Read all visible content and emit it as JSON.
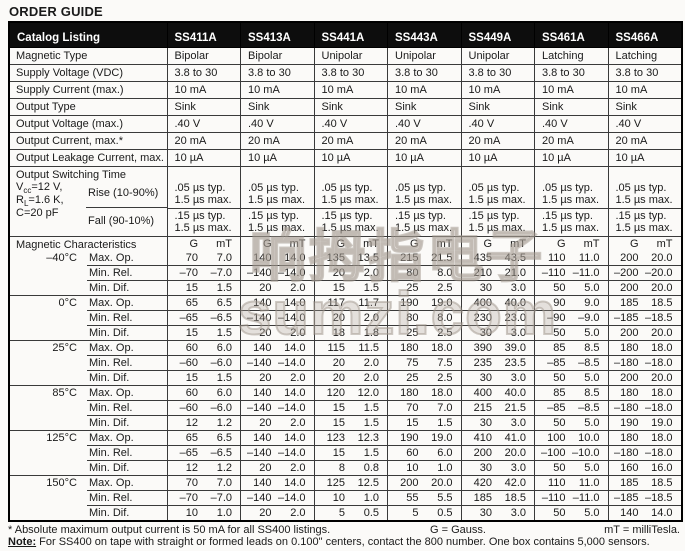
{
  "page": {
    "title": "ORDER GUIDE"
  },
  "colors": {
    "header_bg": "#0d0d0d",
    "border": "#3a3a3a",
    "text": "#1a1a1a",
    "watermark": "#b0a79e"
  },
  "table": {
    "header": {
      "label": "Catalog Listing",
      "columns": [
        "SS411A",
        "SS413A",
        "SS441A",
        "SS443A",
        "SS449A",
        "SS461A",
        "SS466A"
      ]
    },
    "simple_rows": [
      {
        "label": "Magnetic Type",
        "values": [
          "Bipolar",
          "Bipolar",
          "Unipolar",
          "Unipolar",
          "Unipolar",
          "Latching",
          "Latching"
        ]
      },
      {
        "label": "Supply Voltage (VDC)",
        "values": [
          "3.8 to 30",
          "3.8 to 30",
          "3.8 to 30",
          "3.8 to 30",
          "3.8 to 30",
          "3.8 to 30",
          "3.8 to 30"
        ]
      },
      {
        "label": "Supply Current (max.)",
        "values": [
          "10 mA",
          "10 mA",
          "10 mA",
          "10 mA",
          "10 mA",
          "10 mA",
          "10 mA"
        ]
      },
      {
        "label": "Output Type",
        "values": [
          "Sink",
          "Sink",
          "Sink",
          "Sink",
          "Sink",
          "Sink",
          "Sink"
        ]
      },
      {
        "label": "Output Voltage (max.)",
        "values": [
          ".40 V",
          ".40 V",
          ".40 V",
          ".40 V",
          ".40 V",
          ".40 V",
          ".40 V"
        ]
      },
      {
        "label": "Output Current, max.*",
        "values": [
          "20 mA",
          "20 mA",
          "20 mA",
          "20 mA",
          "20 mA",
          "20 mA",
          "20 mA"
        ]
      },
      {
        "label": "Output Leakage Current, max.",
        "values": [
          "10 µA",
          "10 µA",
          "10 µA",
          "10 µA",
          "10 µA",
          "10 µA",
          "10 µA"
        ]
      }
    ],
    "switching": {
      "title": "Output Switching Time",
      "conditions": [
        {
          "base": "V",
          "sub": "cc",
          "rest": "=12 V,"
        },
        {
          "base": "R",
          "sub": "L",
          "rest": "=1.6 K,"
        },
        {
          "base": "C",
          "sub": "",
          "rest": "=20 pF"
        }
      ],
      "rows": [
        {
          "label": "Rise (10-90%)",
          "line1": ".05 µs typ.",
          "line2": "1.5 µs max."
        },
        {
          "label": "Fall (90-10%)",
          "line1": ".15 µs typ.",
          "line2": "1.5 µs max."
        }
      ]
    },
    "magnetic": {
      "section_label": "Magnetic Characteristics",
      "unit_g": "G",
      "unit_mt": "mT",
      "blocks": [
        {
          "temp": "–40°C",
          "rows": [
            {
              "label": "Max. Op.",
              "values": [
                [
                  "70",
                  "7.0"
                ],
                [
                  "140",
                  "14.0"
                ],
                [
                  "135",
                  "13.5"
                ],
                [
                  "215",
                  "21.5"
                ],
                [
                  "435",
                  "43.5"
                ],
                [
                  "110",
                  "11.0"
                ],
                [
                  "200",
                  "20.0"
                ]
              ]
            },
            {
              "label": "Min. Rel.",
              "values": [
                [
                  "–70",
                  "–7.0"
                ],
                [
                  "–140",
                  "–14.0"
                ],
                [
                  "20",
                  "2.0"
                ],
                [
                  "80",
                  "8.0"
                ],
                [
                  "210",
                  "21.0"
                ],
                [
                  "–110",
                  "–11.0"
                ],
                [
                  "–200",
                  "–20.0"
                ]
              ]
            },
            {
              "label": "Min. Dif.",
              "values": [
                [
                  "15",
                  "1.5"
                ],
                [
                  "20",
                  "2.0"
                ],
                [
                  "15",
                  "1.5"
                ],
                [
                  "25",
                  "2.5"
                ],
                [
                  "30",
                  "3.0"
                ],
                [
                  "50",
                  "5.0"
                ],
                [
                  "200",
                  "20.0"
                ]
              ]
            }
          ]
        },
        {
          "temp": "0°C",
          "rows": [
            {
              "label": "Max. Op.",
              "values": [
                [
                  "65",
                  "6.5"
                ],
                [
                  "140",
                  "14.0"
                ],
                [
                  "117",
                  "11.7"
                ],
                [
                  "190",
                  "19.0"
                ],
                [
                  "400",
                  "40.0"
                ],
                [
                  "90",
                  "9.0"
                ],
                [
                  "185",
                  "18.5"
                ]
              ]
            },
            {
              "label": "Min. Rel.",
              "values": [
                [
                  "–65",
                  "–6.5"
                ],
                [
                  "–140",
                  "–14.0"
                ],
                [
                  "20",
                  "2.0"
                ],
                [
                  "80",
                  "8.0"
                ],
                [
                  "230",
                  "23.0"
                ],
                [
                  "–90",
                  "–9.0"
                ],
                [
                  "–185",
                  "–18.5"
                ]
              ]
            },
            {
              "label": "Min. Dif.",
              "values": [
                [
                  "15",
                  "1.5"
                ],
                [
                  "20",
                  "2.0"
                ],
                [
                  "18",
                  "1.8"
                ],
                [
                  "25",
                  "2.5"
                ],
                [
                  "30",
                  "3.0"
                ],
                [
                  "50",
                  "5.0"
                ],
                [
                  "200",
                  "20.0"
                ]
              ]
            }
          ]
        },
        {
          "temp": "25°C",
          "rows": [
            {
              "label": "Max. Op.",
              "values": [
                [
                  "60",
                  "6.0"
                ],
                [
                  "140",
                  "14.0"
                ],
                [
                  "115",
                  "11.5"
                ],
                [
                  "180",
                  "18.0"
                ],
                [
                  "390",
                  "39.0"
                ],
                [
                  "85",
                  "8.5"
                ],
                [
                  "180",
                  "18.0"
                ]
              ]
            },
            {
              "label": "Min. Rel.",
              "values": [
                [
                  "–60",
                  "–6.0"
                ],
                [
                  "–140",
                  "–14.0"
                ],
                [
                  "20",
                  "2.0"
                ],
                [
                  "75",
                  "7.5"
                ],
                [
                  "235",
                  "23.5"
                ],
                [
                  "–85",
                  "–8.5"
                ],
                [
                  "–180",
                  "–18.0"
                ]
              ]
            },
            {
              "label": "Min. Dif.",
              "values": [
                [
                  "15",
                  "1.5"
                ],
                [
                  "20",
                  "2.0"
                ],
                [
                  "20",
                  "2.0"
                ],
                [
                  "25",
                  "2.5"
                ],
                [
                  "30",
                  "3.0"
                ],
                [
                  "50",
                  "5.0"
                ],
                [
                  "200",
                  "20.0"
                ]
              ]
            }
          ]
        },
        {
          "temp": "85°C",
          "rows": [
            {
              "label": "Max. Op.",
              "values": [
                [
                  "60",
                  "6.0"
                ],
                [
                  "140",
                  "14.0"
                ],
                [
                  "120",
                  "12.0"
                ],
                [
                  "180",
                  "18.0"
                ],
                [
                  "400",
                  "40.0"
                ],
                [
                  "85",
                  "8.5"
                ],
                [
                  "180",
                  "18.0"
                ]
              ]
            },
            {
              "label": "Min. Rel.",
              "values": [
                [
                  "–60",
                  "–6.0"
                ],
                [
                  "–140",
                  "–14.0"
                ],
                [
                  "15",
                  "1.5"
                ],
                [
                  "70",
                  "7.0"
                ],
                [
                  "215",
                  "21.5"
                ],
                [
                  "–85",
                  "–8.5"
                ],
                [
                  "–180",
                  "–18.0"
                ]
              ]
            },
            {
              "label": "Min. Dif.",
              "values": [
                [
                  "12",
                  "1.2"
                ],
                [
                  "20",
                  "2.0"
                ],
                [
                  "15",
                  "1.5"
                ],
                [
                  "15",
                  "1.5"
                ],
                [
                  "30",
                  "3.0"
                ],
                [
                  "50",
                  "5.0"
                ],
                [
                  "190",
                  "19.0"
                ]
              ]
            }
          ]
        },
        {
          "temp": "125°C",
          "rows": [
            {
              "label": "Max. Op.",
              "values": [
                [
                  "65",
                  "6.5"
                ],
                [
                  "140",
                  "14.0"
                ],
                [
                  "123",
                  "12.3"
                ],
                [
                  "190",
                  "19.0"
                ],
                [
                  "410",
                  "41.0"
                ],
                [
                  "100",
                  "10.0"
                ],
                [
                  "180",
                  "18.0"
                ]
              ]
            },
            {
              "label": "Min. Rel.",
              "values": [
                [
                  "–65",
                  "–6.5"
                ],
                [
                  "–140",
                  "–14.0"
                ],
                [
                  "15",
                  "1.5"
                ],
                [
                  "60",
                  "6.0"
                ],
                [
                  "200",
                  "20.0"
                ],
                [
                  "–100",
                  "–10.0"
                ],
                [
                  "–180",
                  "–18.0"
                ]
              ]
            },
            {
              "label": "Min. Dif.",
              "values": [
                [
                  "12",
                  "1.2"
                ],
                [
                  "20",
                  "2.0"
                ],
                [
                  "8",
                  "0.8"
                ],
                [
                  "10",
                  "1.0"
                ],
                [
                  "30",
                  "3.0"
                ],
                [
                  "50",
                  "5.0"
                ],
                [
                  "160",
                  "16.0"
                ]
              ]
            }
          ]
        },
        {
          "temp": "150°C",
          "rows": [
            {
              "label": "Max. Op.",
              "values": [
                [
                  "70",
                  "7.0"
                ],
                [
                  "140",
                  "14.0"
                ],
                [
                  "125",
                  "12.5"
                ],
                [
                  "200",
                  "20.0"
                ],
                [
                  "420",
                  "42.0"
                ],
                [
                  "110",
                  "11.0"
                ],
                [
                  "185",
                  "18.5"
                ]
              ]
            },
            {
              "label": "Min. Rel.",
              "values": [
                [
                  "–70",
                  "–7.0"
                ],
                [
                  "–140",
                  "–14.0"
                ],
                [
                  "10",
                  "1.0"
                ],
                [
                  "55",
                  "5.5"
                ],
                [
                  "185",
                  "18.5"
                ],
                [
                  "–110",
                  "–11.0"
                ],
                [
                  "–185",
                  "–18.5"
                ]
              ]
            },
            {
              "label": "Min. Dif.",
              "values": [
                [
                  "10",
                  "1.0"
                ],
                [
                  "20",
                  "2.0"
                ],
                [
                  "5",
                  "0.5"
                ],
                [
                  "5",
                  "0.5"
                ],
                [
                  "30",
                  "3.0"
                ],
                [
                  "50",
                  "5.0"
                ],
                [
                  "140",
                  "14.0"
                ]
              ]
            }
          ]
        }
      ]
    }
  },
  "footnotes": {
    "star": "* Absolute maximum output current is 50 mA for all SS400 listings.",
    "gauss": "G = Gauss.",
    "millitesla": "mT = milliTesla.",
    "note_label": "Note:",
    "note_text": " For SS400 on tape with straight or formed leads on 0.100\" centers, contact the 800 number. One box contains 5,000 sensors."
  },
  "watermark": {
    "line1": "响拇指电子",
    "line2": "sumzi.com"
  }
}
